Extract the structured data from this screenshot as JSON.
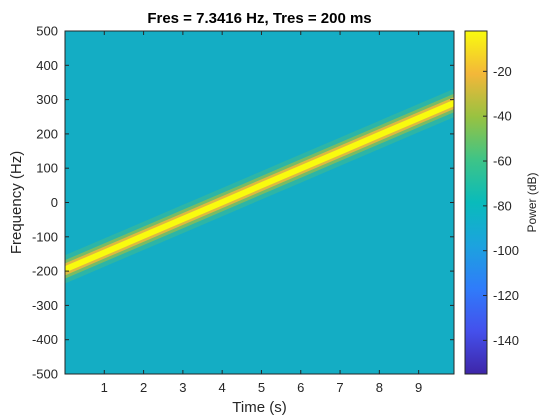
{
  "chart_data": {
    "type": "heatmap",
    "title": "Fres = 7.3416 Hz, Tres = 200 ms",
    "xlabel": "Time (s)",
    "ylabel": "Frequency (Hz)",
    "xlim": [
      0,
      9.9
    ],
    "ylim": [
      -500,
      500
    ],
    "xticks": [
      1,
      2,
      3,
      4,
      5,
      6,
      7,
      8,
      9
    ],
    "yticks": [
      500,
      400,
      300,
      200,
      100,
      0,
      -100,
      -200,
      -300,
      -400,
      -500
    ],
    "colormap": "parula",
    "background_power_db": -80,
    "peak_power_db": -5,
    "series": [
      {
        "x": [
          0,
          1,
          2,
          3,
          4,
          5,
          6,
          7,
          8,
          9,
          9.9
        ],
        "y": [
          -195,
          -146,
          -97,
          -48,
          1,
          50,
          99,
          148,
          197,
          246,
          290
        ]
      }
    ],
    "colorbar": {
      "label": "Power (dB)",
      "range": [
        -155,
        -2
      ],
      "ticks": [
        -20,
        -40,
        -60,
        -80,
        -100,
        -120,
        -140
      ]
    }
  }
}
